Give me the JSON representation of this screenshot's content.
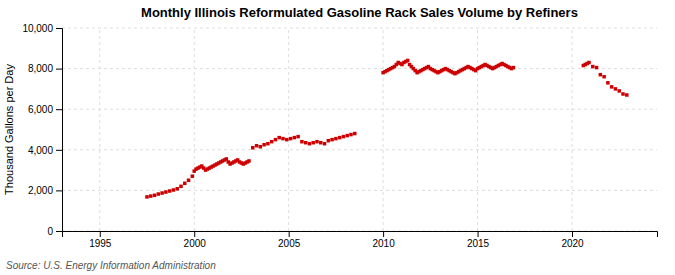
{
  "chart_data": {
    "type": "scatter",
    "title": "Monthly Illinois Reformulated Gasoline Rack Sales Volume by Refiners",
    "ylabel": "Thousand Gallons per Day",
    "source": "Source: U.S. Energy Information Administration",
    "color": "#cc0000",
    "marker": "square",
    "grid": true,
    "xlim": [
      1993.0,
      2024.5
    ],
    "ylim": [
      0,
      10000
    ],
    "xticks": [
      1995,
      2000,
      2005,
      2010,
      2015,
      2020
    ],
    "yticks": [
      0,
      {
        "value": 2000,
        "label": "2,000"
      },
      {
        "value": 4000,
        "label": "4,000"
      },
      {
        "value": 6000,
        "label": "6,000"
      },
      {
        "value": 8000,
        "label": "8,000"
      },
      {
        "value": 10000,
        "label": "10,000"
      }
    ],
    "x": [
      1997.5,
      1997.7,
      1997.9,
      1998.1,
      1998.3,
      1998.5,
      1998.7,
      1998.9,
      1999.1,
      1999.3,
      1999.5,
      1999.7,
      1999.9,
      2000.0,
      2000.1,
      2000.2,
      2000.3,
      2000.4,
      2000.5,
      2000.6,
      2000.7,
      2000.8,
      2000.9,
      2001.0,
      2001.1,
      2001.2,
      2001.3,
      2001.4,
      2001.5,
      2001.6,
      2001.7,
      2001.8,
      2001.9,
      2002.0,
      2002.1,
      2002.2,
      2002.3,
      2002.4,
      2002.5,
      2002.6,
      2002.7,
      2002.8,
      2002.9,
      2003.1,
      2003.3,
      2003.5,
      2003.7,
      2003.9,
      2004.1,
      2004.3,
      2004.5,
      2004.7,
      2004.9,
      2005.1,
      2005.3,
      2005.5,
      2005.7,
      2005.9,
      2006.1,
      2006.3,
      2006.5,
      2006.7,
      2006.9,
      2007.1,
      2007.3,
      2007.5,
      2007.7,
      2007.9,
      2008.1,
      2008.3,
      2008.5,
      2010.0,
      2010.1,
      2010.2,
      2010.3,
      2010.4,
      2010.5,
      2010.6,
      2010.7,
      2010.8,
      2010.9,
      2011.0,
      2011.1,
      2011.2,
      2011.3,
      2011.4,
      2011.5,
      2011.6,
      2011.7,
      2011.8,
      2011.9,
      2012.0,
      2012.1,
      2012.2,
      2012.3,
      2012.4,
      2012.5,
      2012.6,
      2012.7,
      2012.8,
      2012.9,
      2013.0,
      2013.1,
      2013.2,
      2013.3,
      2013.4,
      2013.5,
      2013.6,
      2013.7,
      2013.8,
      2013.9,
      2014.0,
      2014.1,
      2014.2,
      2014.3,
      2014.4,
      2014.5,
      2014.6,
      2014.7,
      2014.8,
      2014.9,
      2015.0,
      2015.1,
      2015.2,
      2015.3,
      2015.4,
      2015.5,
      2015.6,
      2015.7,
      2015.8,
      2015.9,
      2016.0,
      2016.1,
      2016.2,
      2016.3,
      2016.4,
      2016.5,
      2016.6,
      2016.7,
      2016.8,
      2016.9,
      2020.6,
      2020.7,
      2020.8,
      2020.9,
      2021.1,
      2021.3,
      2021.5,
      2021.7,
      2021.9,
      2022.1,
      2022.3,
      2022.5,
      2022.7,
      2022.9
    ],
    "values": [
      1680,
      1720,
      1760,
      1820,
      1870,
      1920,
      1970,
      2020,
      2080,
      2200,
      2350,
      2500,
      2700,
      2950,
      3050,
      3100,
      3150,
      3200,
      3100,
      3000,
      3050,
      3100,
      3150,
      3200,
      3250,
      3300,
      3350,
      3400,
      3450,
      3500,
      3550,
      3400,
      3300,
      3350,
      3400,
      3450,
      3500,
      3400,
      3350,
      3300,
      3350,
      3400,
      3450,
      4100,
      4200,
      4150,
      4250,
      4300,
      4400,
      4500,
      4600,
      4550,
      4500,
      4550,
      4600,
      4650,
      4400,
      4350,
      4300,
      4350,
      4400,
      4350,
      4300,
      4450,
      4500,
      4550,
      4600,
      4650,
      4700,
      4750,
      4800,
      7800,
      7850,
      7900,
      7950,
      8000,
      8050,
      8100,
      8200,
      8300,
      8250,
      8200,
      8300,
      8350,
      8400,
      8200,
      8100,
      8000,
      7900,
      7800,
      7850,
      7900,
      7950,
      8000,
      8050,
      8100,
      8000,
      7950,
      7900,
      7850,
      7800,
      7850,
      7900,
      7950,
      8000,
      7950,
      7900,
      7850,
      7800,
      7750,
      7800,
      7850,
      7900,
      7950,
      8000,
      8050,
      8100,
      8050,
      8000,
      7950,
      7900,
      8000,
      8050,
      8100,
      8150,
      8200,
      8150,
      8100,
      8050,
      8000,
      8050,
      8100,
      8150,
      8200,
      8250,
      8200,
      8150,
      8100,
      8050,
      8000,
      8050,
      8150,
      8200,
      8250,
      8300,
      8100,
      8050,
      7700,
      7600,
      7300,
      7100,
      7000,
      6900,
      6750,
      6700
    ]
  }
}
